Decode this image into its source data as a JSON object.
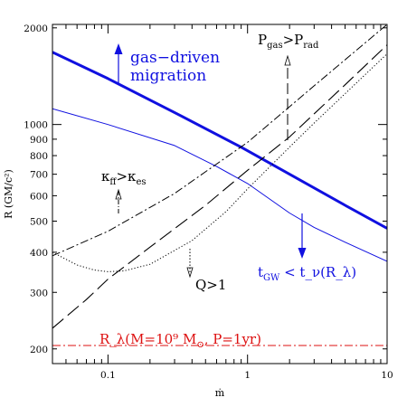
{
  "chart_data": {
    "type": "line",
    "xlabel": "ṁ",
    "ylabel": "R (GM/c²)",
    "xscale": "log",
    "yscale": "log",
    "xlim": [
      0.04,
      10
    ],
    "ylim": [
      180,
      2050
    ],
    "grid": false,
    "x_ticks": [
      {
        "value": 0.1,
        "label": "0.1"
      },
      {
        "value": 1,
        "label": "1"
      },
      {
        "value": 10,
        "label": "10"
      }
    ],
    "y_ticks": [
      {
        "value": 200,
        "label": "200"
      },
      {
        "value": 300,
        "label": "300"
      },
      {
        "value": 400,
        "label": "400"
      },
      {
        "value": 500,
        "label": "500"
      },
      {
        "value": 600,
        "label": "600"
      },
      {
        "value": 700,
        "label": "700"
      },
      {
        "value": 800,
        "label": "800"
      },
      {
        "value": 900,
        "label": "900"
      },
      {
        "value": 1000,
        "label": "1000"
      },
      {
        "value": 2000,
        "label": "2000"
      }
    ],
    "series": [
      {
        "style": "thick-solid",
        "color": "#1010e0",
        "x": [
          0.04,
          0.1,
          0.3,
          0.9,
          2,
          5,
          10
        ],
        "y": [
          1680,
          1390,
          1090,
          850,
          700,
          560,
          475
        ]
      },
      {
        "style": "thin-solid",
        "color": "#1010e0",
        "x": [
          0.04,
          0.1,
          0.3,
          0.6,
          1,
          2,
          3,
          5,
          10
        ],
        "y": [
          1120,
          1000,
          860,
          740,
          655,
          530,
          478,
          430,
          375
        ]
      },
      {
        "style": "dash-dot",
        "color": "#000000",
        "x": [
          0.04,
          0.1,
          0.3,
          1,
          3,
          10
        ],
        "y": [
          390,
          465,
          610,
          880,
          1320,
          2050
        ]
      },
      {
        "style": "long-dash",
        "color": "#000000",
        "x": [
          0.04,
          0.07,
          0.1,
          0.2,
          0.5,
          1,
          2,
          5,
          10
        ],
        "y": [
          232,
          285,
          330,
          415,
          560,
          720,
          915,
          1330,
          1770
        ]
      },
      {
        "style": "dotted",
        "color": "#000000",
        "x": [
          0.04,
          0.06,
          0.08,
          0.1,
          0.13,
          0.2,
          0.4,
          0.7,
          1,
          2,
          3,
          10
        ],
        "y": [
          400,
          365,
          352,
          348,
          350,
          367,
          435,
          535,
          630,
          850,
          1010,
          1660
        ]
      },
      {
        "style": "dash-dot",
        "color": "#dd1010",
        "x": [
          0.04,
          10
        ],
        "y": [
          205,
          205
        ]
      }
    ],
    "annotations": [
      {
        "id": "migration_line1",
        "text": "gas−driven",
        "color": "#1010e0"
      },
      {
        "id": "migration_line2",
        "text": "migration",
        "color": "#1010e0"
      },
      {
        "id": "pgas_prad",
        "text": "P_gas>P_rad",
        "color": "#000000"
      },
      {
        "id": "kappa",
        "text": "κ_ff>κ_es",
        "color": "#000000"
      },
      {
        "id": "q_label",
        "text": "Q>1",
        "color": "#000000"
      },
      {
        "id": "tgw",
        "text": "t_GW < t_ν(R_λ)",
        "color": "#1010e0"
      },
      {
        "id": "rlambda",
        "text": "R_λ(M=10⁹ M_⊙, P=1yr)",
        "color": "#dd1010"
      }
    ]
  }
}
